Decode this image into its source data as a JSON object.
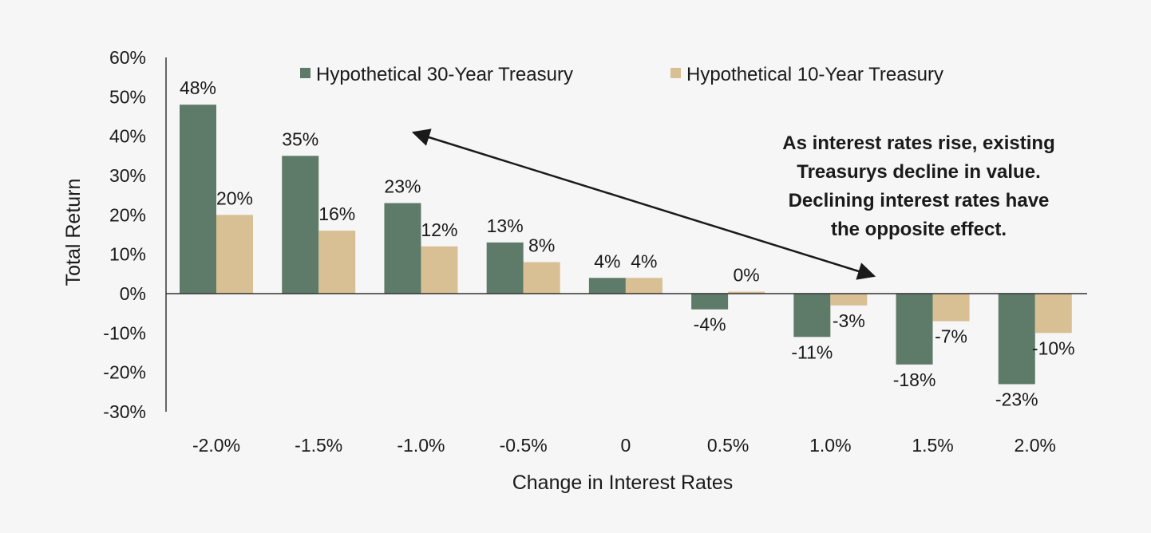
{
  "chart_data": {
    "type": "bar",
    "categories": [
      "-2.0%",
      "-1.5%",
      "-1.0%",
      "-0.5%",
      "0",
      "0.5%",
      "1.0%",
      "1.5%",
      "2.0%"
    ],
    "series": [
      {
        "name": "Hypothetical 30-Year Treasury",
        "color": "#5e7a69",
        "values": [
          48,
          35,
          23,
          13,
          4,
          -4,
          -11,
          -18,
          -23
        ],
        "labels": [
          "48%",
          "35%",
          "23%",
          "13%",
          "4%",
          "-4%",
          "-11%",
          "-18%",
          "-23%"
        ]
      },
      {
        "name": "Hypothetical 10-Year Treasury",
        "color": "#d8bf94",
        "values": [
          20,
          16,
          12,
          8,
          4,
          0.5,
          -3,
          -7,
          -10
        ],
        "labels": [
          "20%",
          "16%",
          "12%",
          "8%",
          "4%",
          "0%",
          "-3%",
          "-7%",
          "-10%"
        ]
      }
    ],
    "xlabel": "Change in Interest Rates",
    "ylabel": "Total Return",
    "ylim": [
      -30,
      60
    ],
    "yticks": [
      60,
      50,
      40,
      30,
      20,
      10,
      0,
      -10,
      -20,
      -30
    ],
    "ytick_labels": [
      "60%",
      "50%",
      "40%",
      "30%",
      "20%",
      "10%",
      "0%",
      "-10%",
      "-20%",
      "-30%"
    ],
    "grid": false,
    "legend_position": "top",
    "annotation": {
      "lines": [
        "As interest rates rise, existing",
        "Treasurys decline in value.",
        "Declining interest rates have",
        "the opposite effect."
      ]
    }
  }
}
